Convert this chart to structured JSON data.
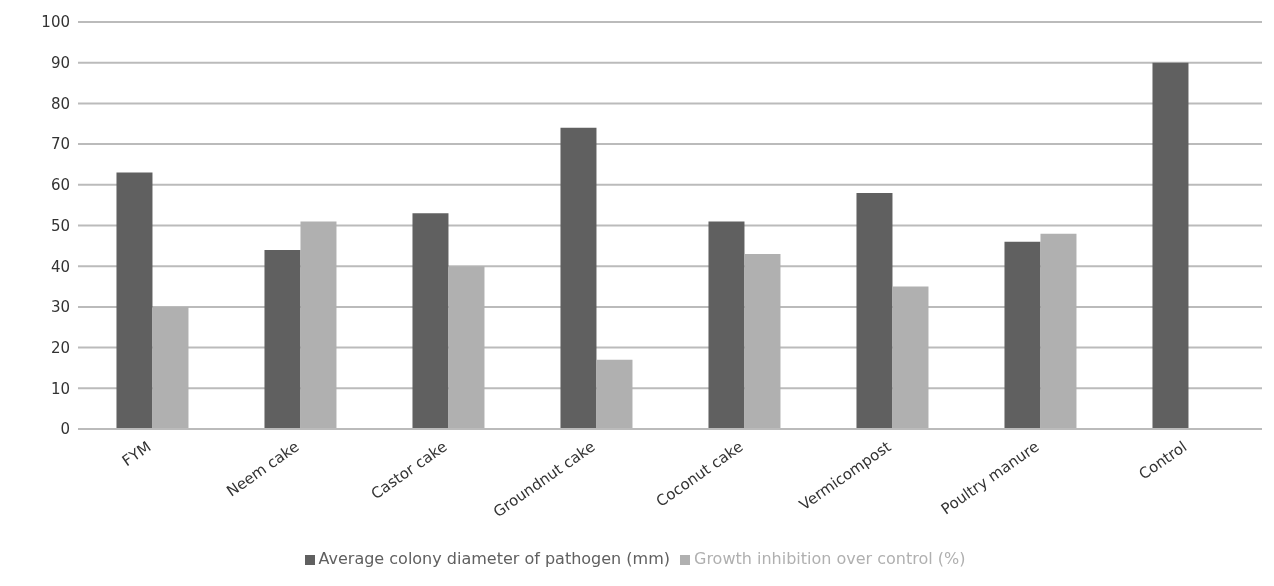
{
  "chart_data": {
    "type": "bar",
    "categories": [
      "FYM",
      "Neem cake",
      "Castor cake",
      "Groundnut cake",
      "Coconut cake",
      "Vermicompost",
      "Poultry manure",
      "Control"
    ],
    "series": [
      {
        "name": "Average colony diameter of pathogen (mm)",
        "color": "#606060",
        "values": [
          63,
          44,
          53,
          74,
          51,
          58,
          46,
          90
        ]
      },
      {
        "name": "Growth inhibition over control (%)",
        "color": "#b0b0b0",
        "values": [
          30,
          51,
          40,
          17,
          43,
          35,
          48,
          0
        ]
      }
    ],
    "ylim": [
      0,
      100
    ],
    "yticks": [
      0,
      10,
      20,
      30,
      40,
      50,
      60,
      70,
      80,
      90,
      100
    ],
    "grid": "y",
    "legend": "bottom"
  }
}
